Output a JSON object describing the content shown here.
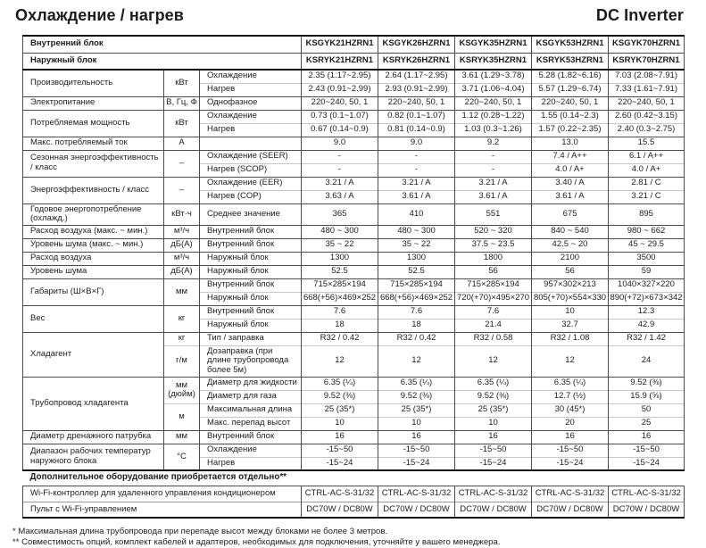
{
  "page": {
    "title": "Охлаждение / нагрев",
    "brand": "DC Inverter"
  },
  "table": {
    "header": {
      "indoor_label": "Внутренний блок",
      "outdoor_label": "Наружный блок",
      "indoor_models": [
        "KSGYK21HZRN1",
        "KSGYK26HZRN1",
        "KSGYK35HZRN1",
        "KSGYK53HZRN1",
        "KSGYK70HZRN1"
      ],
      "outdoor_models": [
        "KSRYK21HZRN1",
        "KSRYK26HZRN1",
        "KSRYK35HZRN1",
        "KSRYK53HZRN1",
        "KSRYK70HZRN1"
      ]
    },
    "groups": [
      {
        "label": "Производительность",
        "rows": [
          {
            "unit": {
              "text": "кВт",
              "span": 2
            },
            "sub": "Охлаждение",
            "values": [
              "2.35 (1.17~2.95)",
              "2.64 (1.17~2.95)",
              "3.61 (1.29~3.78)",
              "5.28 (1.82~6.16)",
              "7.03 (2.08~7.91)"
            ]
          },
          {
            "sub": "Нагрев",
            "values": [
              "2.43 (0.91~2.99)",
              "2.93 (0.91~2.99)",
              "3.71 (1.06~4.04)",
              "5.57 (1.29~6.74)",
              "7.33 (1.61~7.91)"
            ]
          }
        ]
      },
      {
        "label": "Электропитание",
        "rows": [
          {
            "unit": {
              "text": "В, Гц, Ф",
              "span": 1
            },
            "sub": "Однофазное",
            "values": [
              "220~240, 50, 1",
              "220~240, 50, 1",
              "220~240, 50, 1",
              "220~240, 50, 1",
              "220~240, 50, 1"
            ]
          }
        ]
      },
      {
        "label": "Потребляемая мощность",
        "rows": [
          {
            "unit": {
              "text": "кВт",
              "span": 2
            },
            "sub": "Охлаждение",
            "values": [
              "0.73 (0.1~1.07)",
              "0.82 (0.1~1.07)",
              "1.12 (0.28~1.22)",
              "1.55 (0.14~2.3)",
              "2.60 (0.42~3.15)"
            ]
          },
          {
            "sub": "Нагрев",
            "values": [
              "0.67 (0.14~0.9)",
              "0.81 (0.14~0.9)",
              "1.03 (0.3~1.26)",
              "1.57 (0.22~2.35)",
              "2.40 (0.3~2.75)"
            ]
          }
        ]
      },
      {
        "label": "Макс. потребляемый ток",
        "rows": [
          {
            "unit": {
              "text": "А",
              "span": 1
            },
            "sub": "",
            "values": [
              "9.0",
              "9.0",
              "9.2",
              "13.0",
              "15.5"
            ]
          }
        ]
      },
      {
        "label": "Сезонная энергоэффективность / класс",
        "rows": [
          {
            "unit": {
              "text": "–",
              "span": 2
            },
            "sub": "Охлаждение (SEER)",
            "values": [
              "-",
              "-",
              "-",
              "7.4 / A++",
              "6.1 / A++"
            ]
          },
          {
            "sub": "Нагрев (SCOP)",
            "values": [
              "-",
              "-",
              "-",
              "4.0 / A+",
              "4.0 / A+"
            ]
          }
        ]
      },
      {
        "label": "Энергоэффективность / класс",
        "rows": [
          {
            "unit": {
              "text": "–",
              "span": 2
            },
            "sub": "Охлаждение (EER)",
            "values": [
              "3.21 / A",
              "3.21 / A",
              "3.21 / A",
              "3.40 / A",
              "2.81 / C"
            ]
          },
          {
            "sub": "Нагрев (COP)",
            "values": [
              "3.63 / A",
              "3.61 / A",
              "3.61 / A",
              "3.61 / A",
              "3.21 / C"
            ]
          }
        ]
      },
      {
        "label": "Годовое энергопотребление (охлажд.)",
        "rows": [
          {
            "unit": {
              "text": "кВт·ч",
              "span": 1
            },
            "sub": "Среднее значение",
            "values": [
              "365",
              "410",
              "551",
              "675",
              "895"
            ]
          }
        ]
      },
      {
        "label": "Расход воздуха (макс. ~ мин.)",
        "rows": [
          {
            "unit": {
              "text": "м³/ч",
              "span": 1
            },
            "sub": "Внутренний блок",
            "values": [
              "480 ~ 300",
              "480 ~ 300",
              "520 ~ 320",
              "840 ~ 540",
              "980 ~ 662"
            ]
          }
        ]
      },
      {
        "label": "Уровень шума (макс. ~ мин.)",
        "rows": [
          {
            "unit": {
              "text": "дБ(А)",
              "span": 1
            },
            "sub": "Внутренний блок",
            "values": [
              "35 ~ 22",
              "35 ~ 22",
              "37.5 ~ 23.5",
              "42.5 ~ 20",
              "45 ~ 29.5"
            ]
          }
        ]
      },
      {
        "label": "Расход воздуха",
        "rows": [
          {
            "unit": {
              "text": "м³/ч",
              "span": 1
            },
            "sub": "Наружный блок",
            "values": [
              "1300",
              "1300",
              "1800",
              "2100",
              "3500"
            ]
          }
        ]
      },
      {
        "label": "Уровень шума",
        "rows": [
          {
            "unit": {
              "text": "дБ(А)",
              "span": 1
            },
            "sub": "Наружный блок",
            "values": [
              "52.5",
              "52.5",
              "56",
              "56",
              "59"
            ]
          }
        ]
      },
      {
        "label": "Габариты (Ш×В×Г)",
        "rows": [
          {
            "unit": {
              "text": "мм",
              "span": 2
            },
            "sub": "Внутренний блок",
            "values": [
              "715×285×194",
              "715×285×194",
              "715×285×194",
              "957×302×213",
              "1040×327×220"
            ]
          },
          {
            "sub": "Наружный блок",
            "values": [
              "668(+56)×469×252",
              "668(+56)×469×252",
              "720(+70)×495×270",
              "805(+70)×554×330",
              "890(+72)×673×342"
            ]
          }
        ]
      },
      {
        "label": "Вес",
        "rows": [
          {
            "unit": {
              "text": "кг",
              "span": 2
            },
            "sub": "Внутренний блок",
            "values": [
              "7.6",
              "7.6",
              "7.6",
              "10",
              "12.3"
            ]
          },
          {
            "sub": "Наружный блок",
            "values": [
              "18",
              "18",
              "21.4",
              "32.7",
              "42.9"
            ]
          }
        ]
      },
      {
        "label": "Хладагент",
        "rows": [
          {
            "unit": {
              "text": "кг",
              "span": 1
            },
            "sub": "Тип / заправка",
            "values": [
              "R32 / 0.42",
              "R32 / 0.42",
              "R32 / 0.58",
              "R32 / 1.08",
              "R32 / 1.42"
            ]
          },
          {
            "unit": {
              "text": "г/м",
              "span": 1
            },
            "sub": "Дозаправка (при длине трубопровода более 5м)",
            "values": [
              "12",
              "12",
              "12",
              "12",
              "24"
            ]
          }
        ]
      },
      {
        "label": "Трубопровод хладагента",
        "rows": [
          {
            "unit": {
              "text": "мм (дюйм)",
              "span": 2
            },
            "sub": "Диаметр для жидкости",
            "values": [
              "6.35 (¼)",
              "6.35 (¼)",
              "6.35 (¼)",
              "6.35 (¼)",
              "9.52 (⅜)"
            ]
          },
          {
            "sub": "Диаметр для газа",
            "values": [
              "9.52 (⅜)",
              "9.52 (⅜)",
              "9.52 (⅜)",
              "12.7 (½)",
              "15.9 (⅝)"
            ]
          },
          {
            "unit": {
              "text": "м",
              "span": 2
            },
            "sub": "Максимальная длина",
            "values": [
              "25 (35*)",
              "25 (35*)",
              "25 (35*)",
              "30 (45*)",
              "50"
            ]
          },
          {
            "sub": "Макс. перепад высот",
            "values": [
              "10",
              "10",
              "10",
              "20",
              "25"
            ]
          }
        ]
      },
      {
        "label": "Диаметр дренажного патрубка",
        "rows": [
          {
            "unit": {
              "text": "мм",
              "span": 1
            },
            "sub": "Внутренний блок",
            "values": [
              "16",
              "16",
              "16",
              "16",
              "16"
            ]
          }
        ]
      },
      {
        "label": "Диапазон рабочих температур наружного блока",
        "rows": [
          {
            "unit": {
              "text": "°С",
              "span": 2
            },
            "sub": "Охлаждение",
            "values": [
              "-15~50",
              "-15~50",
              "-15~50",
              "-15~50",
              "-15~50"
            ]
          },
          {
            "sub": "Нагрев",
            "values": [
              "-15~24",
              "-15~24",
              "-15~24",
              "-15~24",
              "-15~24"
            ]
          }
        ]
      }
    ]
  },
  "accessories": {
    "header": "Дополнительное оборудование приобретается отдельно**",
    "rows": [
      {
        "label": "Wi-Fi-контроллер для удаленного управления кондиционером",
        "values": [
          "CTRL-AC-S-31/32",
          "CTRL-AC-S-31/32",
          "CTRL-AC-S-31/32",
          "CTRL-AC-S-31/32",
          "CTRL-AC-S-31/32"
        ]
      },
      {
        "label": "Пульт с Wi-Fi-управлением",
        "values": [
          "DC70W / DC80W",
          "DC70W / DC80W",
          "DC70W / DC80W",
          "DC70W / DC80W",
          "DC70W / DC80W"
        ]
      }
    ]
  },
  "footnotes": [
    "* Максимальная длина трубопровода при перепаде высот между блоками не более 3 метров.",
    "** Совместимость опций, комплект кабелей и адаптеров, необходимых для подключения, уточняйте у вашего менеджера."
  ]
}
